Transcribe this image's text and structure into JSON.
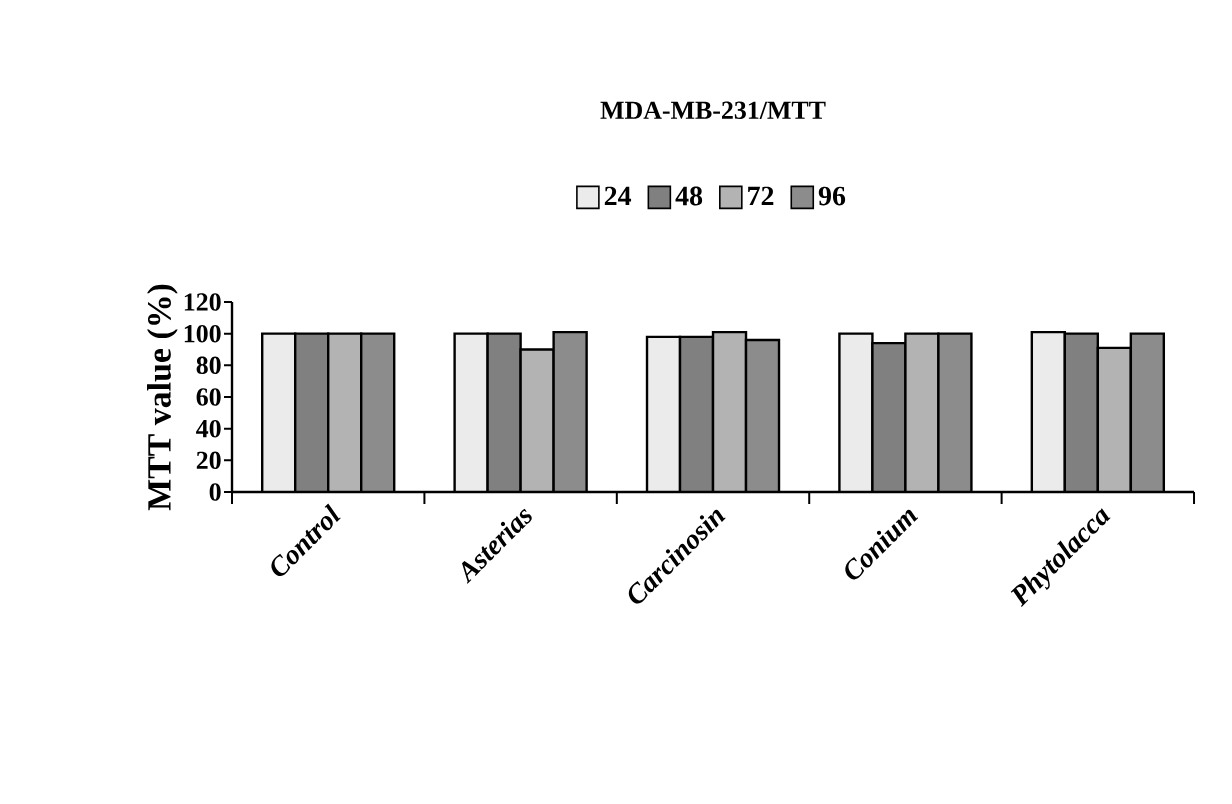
{
  "chart_data": {
    "type": "bar",
    "title": "MDA-MB-231/MTT",
    "ylabel": "MTT value (%)",
    "categories": [
      "Control",
      "Asterias",
      "Carcinosin",
      "Conium",
      "Phytolacca"
    ],
    "series": [
      {
        "name": "24",
        "color": "#ebebeb",
        "values": [
          100,
          100,
          98,
          100,
          101
        ]
      },
      {
        "name": "48",
        "color": "#808080",
        "values": [
          100,
          100,
          98,
          94,
          100
        ]
      },
      {
        "name": "72",
        "color": "#b3b3b3",
        "values": [
          100,
          90,
          101,
          100,
          91
        ]
      },
      {
        "name": "96",
        "color": "#8c8c8c",
        "values": [
          100,
          101,
          96,
          100,
          100
        ]
      }
    ],
    "ylim": [
      0,
      120
    ],
    "yticks": [
      0,
      20,
      40,
      60,
      80,
      100,
      120
    ],
    "grid": false,
    "legend": "top"
  }
}
